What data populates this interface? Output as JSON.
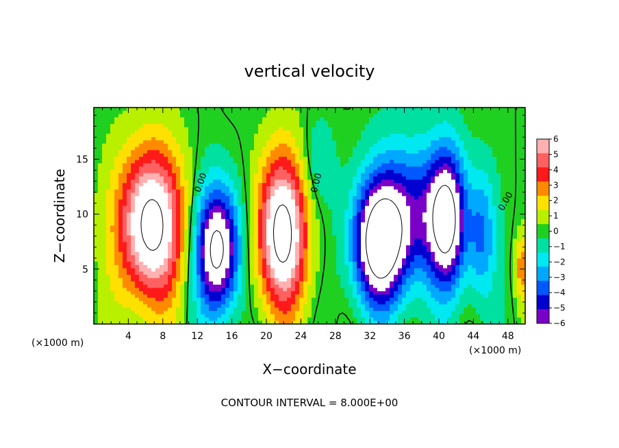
{
  "chart_data": {
    "type": "heatmap",
    "title": "vertical velocity",
    "xlabel": "X−coordinate",
    "ylabel": "Z−coordinate",
    "x_unit_left": "(×1000 m)",
    "x_unit_right": "(×1000 m)",
    "footer": "CONTOUR INTERVAL = 8.000E+00",
    "xlim": [
      0,
      50
    ],
    "ylim": [
      0,
      19.7
    ],
    "x_ticks": [
      4,
      8,
      12,
      16,
      20,
      24,
      28,
      32,
      36,
      40,
      44,
      48
    ],
    "x_tick_labels": [
      "4",
      "8",
      "12",
      "16",
      "20",
      "24",
      "28",
      "32",
      "36",
      "40",
      "44",
      "48"
    ],
    "y_ticks": [
      5,
      10,
      15
    ],
    "y_tick_labels": [
      "5",
      "10",
      "15"
    ],
    "colorbar": {
      "min": -6,
      "max": 6,
      "labels": [
        "6",
        "5",
        "4",
        "3",
        "2",
        "1",
        "0",
        "−1",
        "−2",
        "−3",
        "−4",
        "−5",
        "−6"
      ],
      "colors": [
        "#ffb0b0",
        "#ff6060",
        "#ff1a1a",
        "#ff8a00",
        "#ffe000",
        "#b8f000",
        "#20d020",
        "#00e0a0",
        "#00e8f0",
        "#00a8ff",
        "#0058ff",
        "#0000d0",
        "#7a00c8"
      ],
      "out_of_range_color": "#ffffff"
    },
    "zero_contour_label": "0.00",
    "features": [
      {
        "x": 6.6,
        "z": 9.0,
        "value": 9.0,
        "sx": 3.8,
        "sz": 7.0
      },
      {
        "x": 14.3,
        "z": 6.8,
        "value": -9.0,
        "sx": 2.6,
        "sz": 5.8
      },
      {
        "x": 21.8,
        "z": 8.3,
        "value": 9.0,
        "sx": 2.9,
        "sz": 7.0
      },
      {
        "x": 33.0,
        "z": 7.2,
        "value": -8.5,
        "sx": 3.0,
        "sz": 5.6
      },
      {
        "x": 36.5,
        "z": 10.0,
        "value": -5.0,
        "sx": 4.5,
        "sz": 6.5
      },
      {
        "x": 41.0,
        "z": 9.5,
        "value": -8.0,
        "sx": 2.2,
        "sz": 6.2
      },
      {
        "x": 45.0,
        "z": 8.0,
        "value": -3.5,
        "sx": 1.6,
        "sz": 6.0
      },
      {
        "x": 26.0,
        "z": 14.5,
        "value": -1.5,
        "sx": 2.0,
        "sz": 4.0
      },
      {
        "x": 49.6,
        "z": 5.0,
        "value": 3.0,
        "sx": 0.8,
        "sz": 3.0
      }
    ]
  }
}
